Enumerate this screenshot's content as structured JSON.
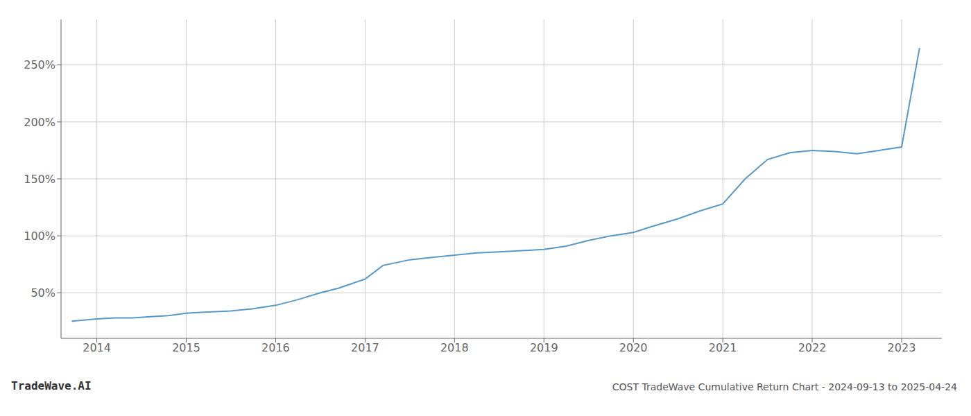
{
  "chart_data": {
    "type": "line",
    "title": "COST TradeWave Cumulative Return Chart - 2024-09-13 to 2025-04-24",
    "annotations": [
      "TradeWave.AI"
    ],
    "x": [
      2013.72,
      2014.0,
      2014.2,
      2014.4,
      2014.6,
      2014.8,
      2015.0,
      2015.2,
      2015.5,
      2015.75,
      2016.0,
      2016.25,
      2016.5,
      2016.7,
      2017.0,
      2017.2,
      2017.5,
      2017.75,
      2018.0,
      2018.25,
      2018.5,
      2018.75,
      2019.0,
      2019.25,
      2019.5,
      2019.75,
      2020.0,
      2020.2,
      2020.5,
      2020.75,
      2021.0,
      2021.25,
      2021.5,
      2021.75,
      2022.0,
      2022.25,
      2022.5,
      2022.75,
      2023.0,
      2023.2
    ],
    "values": [
      25,
      27,
      28,
      28,
      29,
      30,
      32,
      33,
      34,
      36,
      39,
      44,
      50,
      54,
      62,
      74,
      79,
      81,
      83,
      85,
      86,
      87,
      88,
      91,
      96,
      100,
      103,
      108,
      115,
      122,
      128,
      150,
      167,
      173,
      175,
      174,
      172,
      175,
      178,
      265
    ],
    "color": "#5599cc",
    "xlim": [
      2013.6,
      2023.45
    ],
    "ylim": [
      10,
      290
    ],
    "xticks": [
      2014,
      2015,
      2016,
      2017,
      2018,
      2019,
      2020,
      2021,
      2022,
      2023
    ],
    "yticks": [
      {
        "value": 50,
        "label": "50%"
      },
      {
        "value": 100,
        "label": "100%"
      },
      {
        "value": 150,
        "label": "150%"
      },
      {
        "value": 200,
        "label": "200%"
      },
      {
        "value": 250,
        "label": "250%"
      }
    ],
    "grid": true
  }
}
